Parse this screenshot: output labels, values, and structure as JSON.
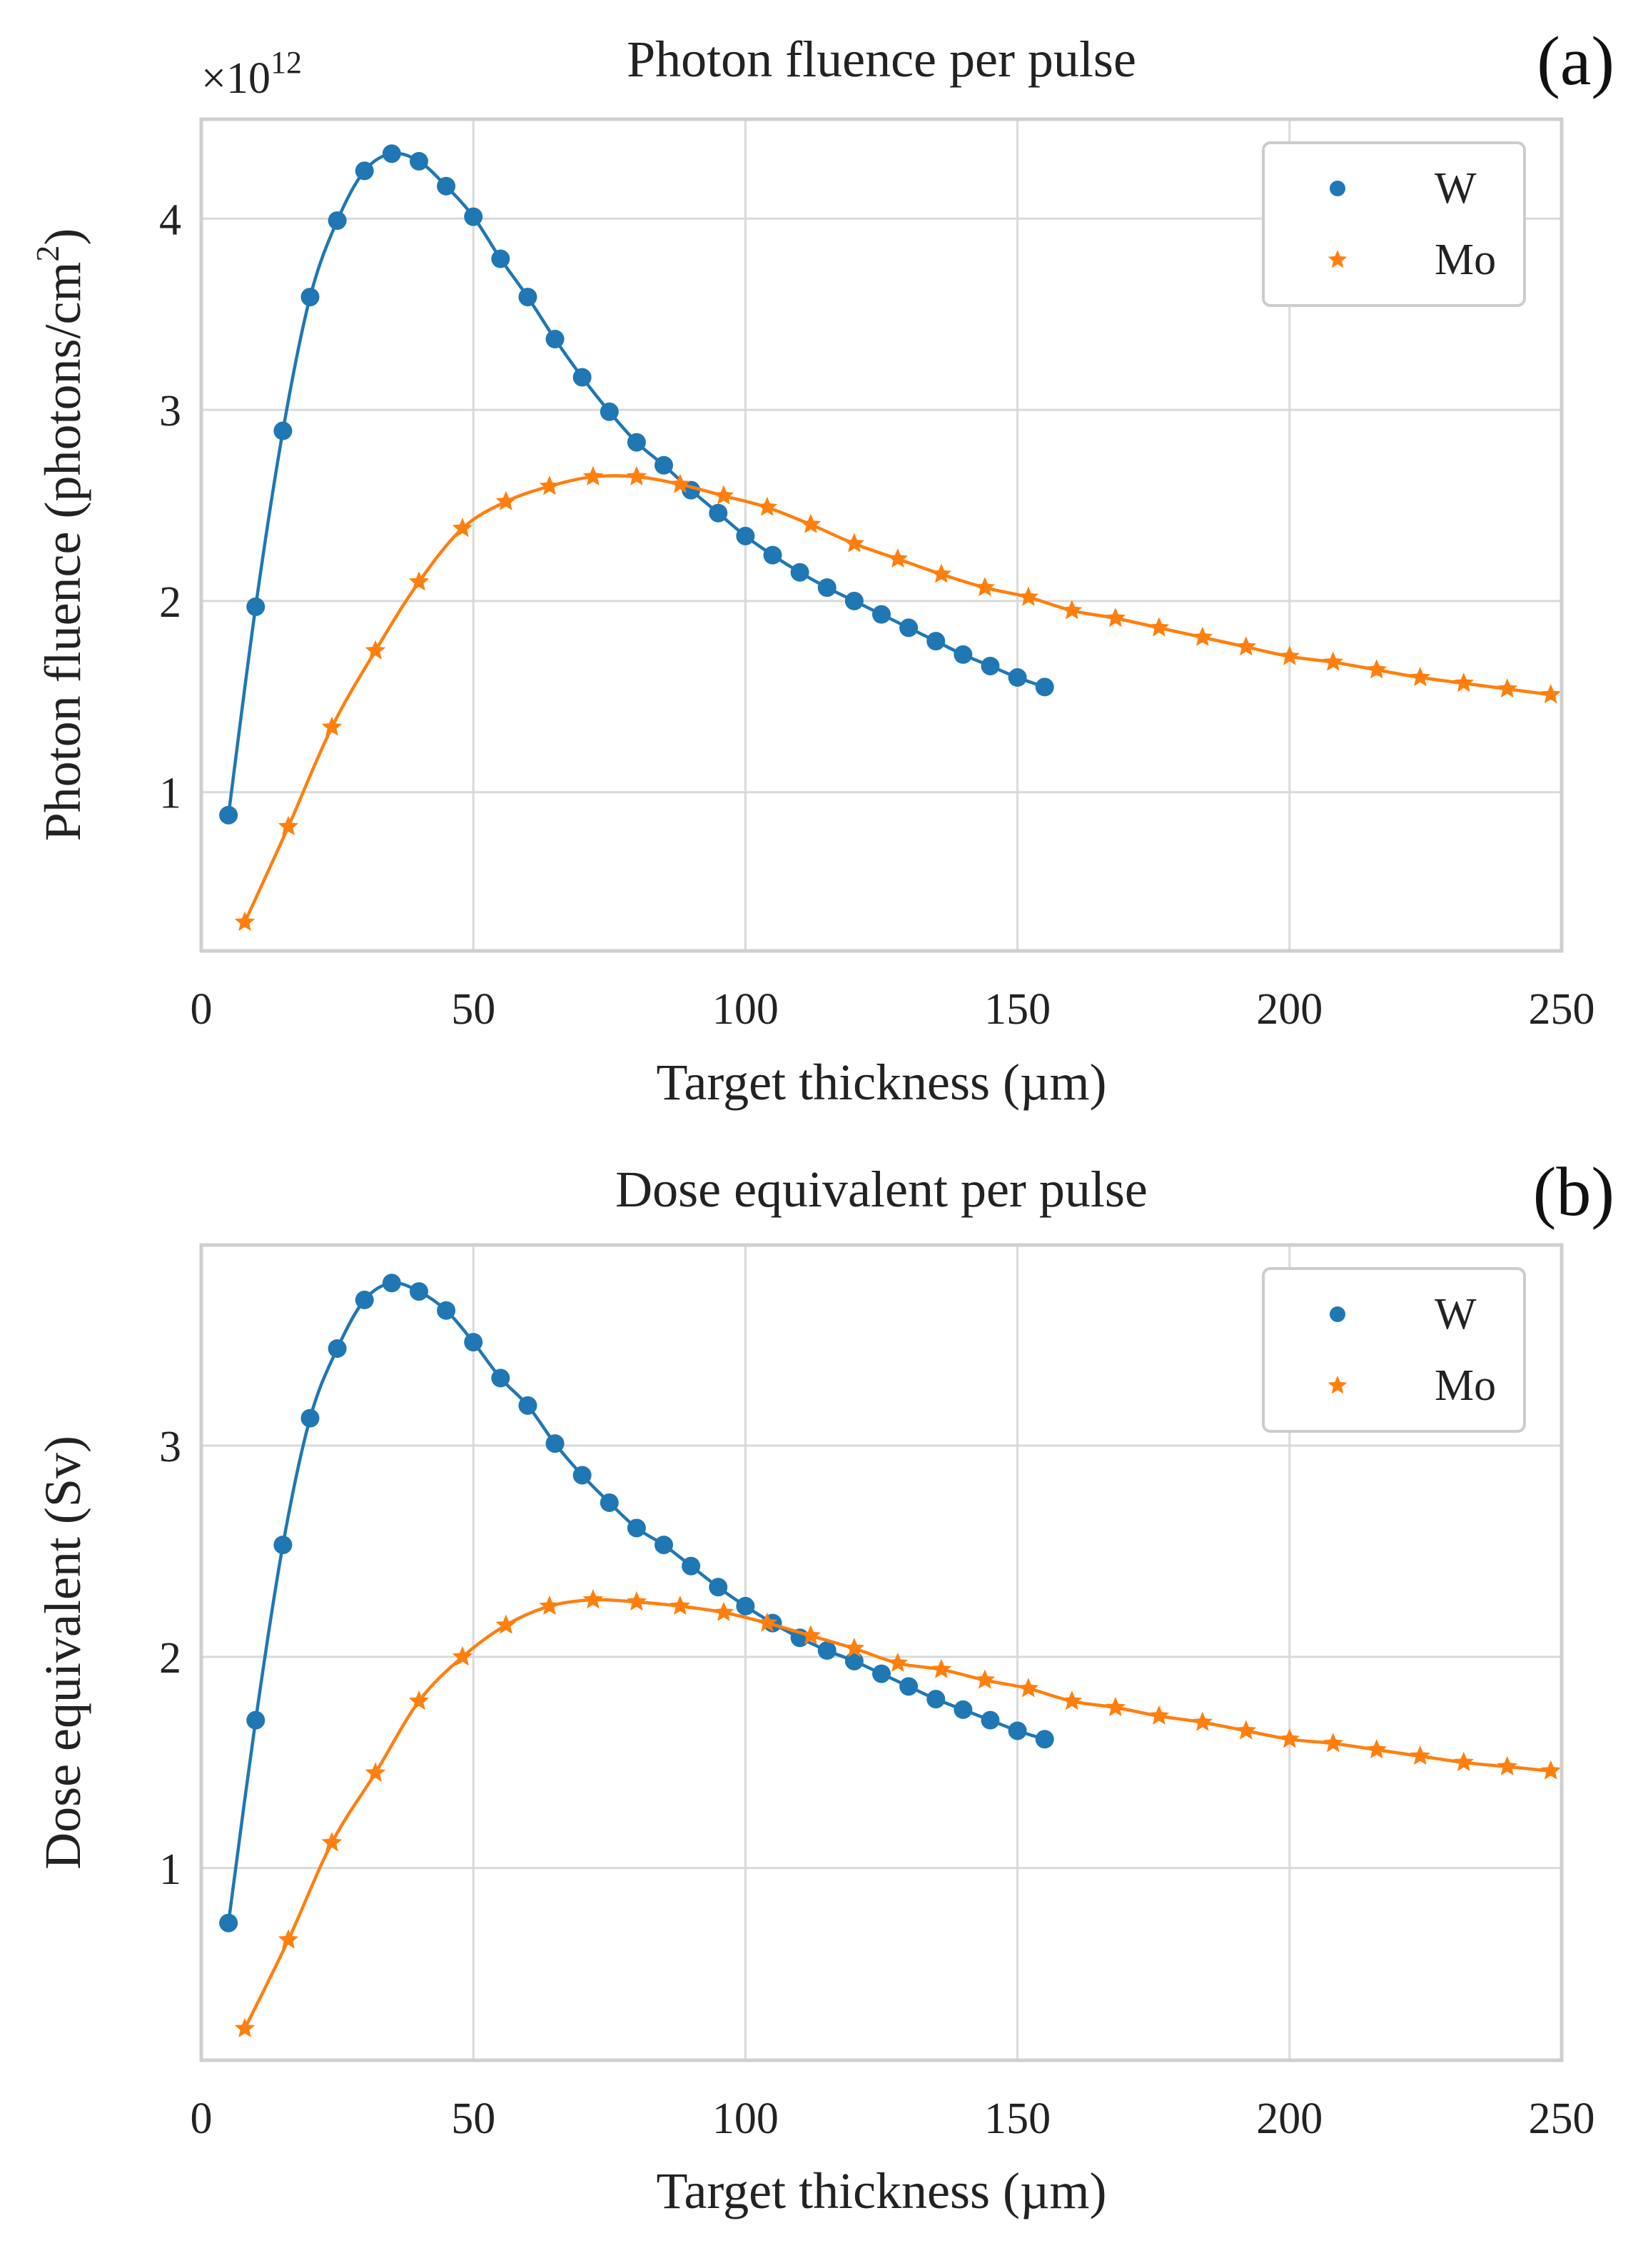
{
  "chart_data": [
    {
      "type": "line",
      "panel_label": "(a)",
      "title": "Photon fluence per pulse",
      "xlabel": "Target thickness (µm)",
      "ylabel": "Photon fluence (photons/cm²)",
      "ylabel_main": "Photon fluence (photons/cm",
      "ylabel_sup": "2",
      "ylabel_close": ")",
      "offset_base": "×10",
      "offset_exp": "12",
      "xlim": [
        0,
        250
      ],
      "ylim": [
        0.17,
        4.52
      ],
      "xticks": [
        0,
        50,
        100,
        150,
        200,
        250
      ],
      "yticks": [
        1,
        2,
        3,
        4
      ],
      "grid": true,
      "legend_position": "top-right",
      "series": [
        {
          "name": "W",
          "marker": "circle",
          "color": "#1f77b4",
          "x": [
            5,
            10,
            15,
            20,
            25,
            30,
            35,
            40,
            45,
            50,
            55,
            60,
            65,
            70,
            75,
            80,
            85,
            90,
            95,
            100,
            105,
            110,
            115,
            120,
            125,
            130,
            135,
            140,
            145,
            150,
            155
          ],
          "y": [
            0.88,
            1.97,
            2.89,
            3.59,
            3.99,
            4.25,
            4.34,
            4.3,
            4.17,
            4.01,
            3.79,
            3.59,
            3.37,
            3.17,
            2.99,
            2.83,
            2.71,
            2.58,
            2.46,
            2.34,
            2.24,
            2.15,
            2.07,
            2.0,
            1.93,
            1.86,
            1.79,
            1.72,
            1.66,
            1.6,
            1.55
          ]
        },
        {
          "name": "Mo",
          "marker": "star",
          "color": "#ff7f0e",
          "x": [
            8,
            16,
            24,
            32,
            40,
            48,
            56,
            64,
            72,
            80,
            88,
            96,
            104,
            112,
            120,
            128,
            136,
            144,
            152,
            160,
            168,
            176,
            184,
            192,
            200,
            208,
            216,
            224,
            232,
            240,
            248
          ],
          "y": [
            0.32,
            0.82,
            1.34,
            1.74,
            2.1,
            2.38,
            2.52,
            2.6,
            2.65,
            2.65,
            2.61,
            2.55,
            2.49,
            2.4,
            2.3,
            2.22,
            2.14,
            2.07,
            2.02,
            1.95,
            1.91,
            1.86,
            1.81,
            1.76,
            1.71,
            1.68,
            1.64,
            1.6,
            1.57,
            1.54,
            1.51
          ]
        }
      ]
    },
    {
      "type": "line",
      "panel_label": "(b)",
      "title": "Dose equivalent per pulse",
      "xlabel": "Target thickness (µm)",
      "ylabel": "Dose equivalent (Sv)",
      "xlim": [
        0,
        250
      ],
      "ylim": [
        0.09,
        3.95
      ],
      "xticks": [
        0,
        50,
        100,
        150,
        200,
        250
      ],
      "yticks": [
        1,
        2,
        3
      ],
      "grid": true,
      "legend_position": "top-right",
      "series": [
        {
          "name": "W",
          "marker": "circle",
          "color": "#1f77b4",
          "x": [
            5,
            10,
            15,
            20,
            25,
            30,
            35,
            40,
            45,
            50,
            55,
            60,
            65,
            70,
            75,
            80,
            85,
            90,
            95,
            100,
            105,
            110,
            115,
            120,
            125,
            130,
            135,
            140,
            145,
            150,
            155
          ],
          "y": [
            0.74,
            1.7,
            2.53,
            3.13,
            3.46,
            3.69,
            3.77,
            3.73,
            3.64,
            3.49,
            3.32,
            3.19,
            3.01,
            2.86,
            2.73,
            2.61,
            2.53,
            2.43,
            2.33,
            2.24,
            2.16,
            2.09,
            2.03,
            1.98,
            1.92,
            1.86,
            1.8,
            1.75,
            1.7,
            1.65,
            1.61
          ]
        },
        {
          "name": "Mo",
          "marker": "star",
          "color": "#ff7f0e",
          "x": [
            8,
            16,
            24,
            32,
            40,
            48,
            56,
            64,
            72,
            80,
            88,
            96,
            104,
            112,
            120,
            128,
            136,
            144,
            152,
            160,
            168,
            176,
            184,
            192,
            200,
            208,
            216,
            224,
            232,
            240,
            248
          ],
          "y": [
            0.24,
            0.66,
            1.12,
            1.45,
            1.79,
            2.0,
            2.15,
            2.24,
            2.27,
            2.26,
            2.24,
            2.21,
            2.16,
            2.1,
            2.04,
            1.97,
            1.94,
            1.89,
            1.85,
            1.79,
            1.76,
            1.72,
            1.69,
            1.65,
            1.61,
            1.59,
            1.56,
            1.53,
            1.5,
            1.48,
            1.46
          ]
        }
      ]
    }
  ]
}
